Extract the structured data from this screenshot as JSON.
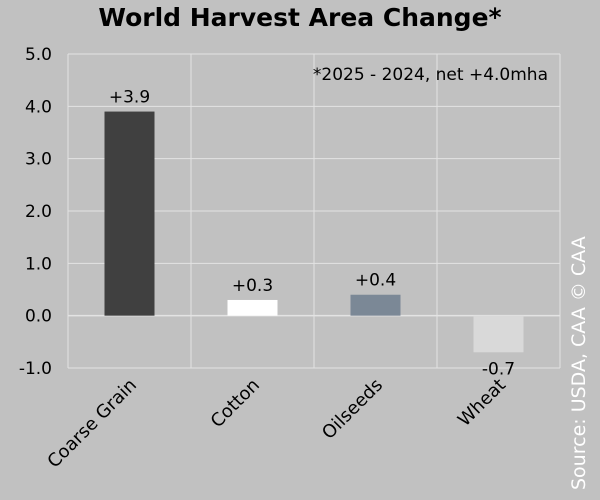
{
  "chart_data": {
    "type": "bar",
    "title": "World Harvest Area Change*",
    "annotation": "*2025 - 2024, net +4.0mha",
    "categories": [
      "Coarse Grain",
      "Cotton",
      "Oilseeds",
      "Wheat"
    ],
    "values": [
      3.9,
      0.3,
      0.4,
      -0.7
    ],
    "data_labels": [
      "+3.9",
      "+0.3",
      "+0.4",
      "-0.7"
    ],
    "bar_colors": [
      "#404040",
      "#ffffff",
      "#7b8896",
      "#d9d9d9"
    ],
    "yticks": [
      "5.0",
      "4.0",
      "3.0",
      "2.0",
      "1.0",
      "0.0",
      "-1.0"
    ],
    "ylim": [
      -1.0,
      5.0
    ],
    "grid": true,
    "xlabel": "",
    "ylabel": ""
  },
  "source": "Source: USDA, CAA  © CAA",
  "colors": {
    "background": "#c1c1c1",
    "gridline": "#e3e3e3"
  }
}
